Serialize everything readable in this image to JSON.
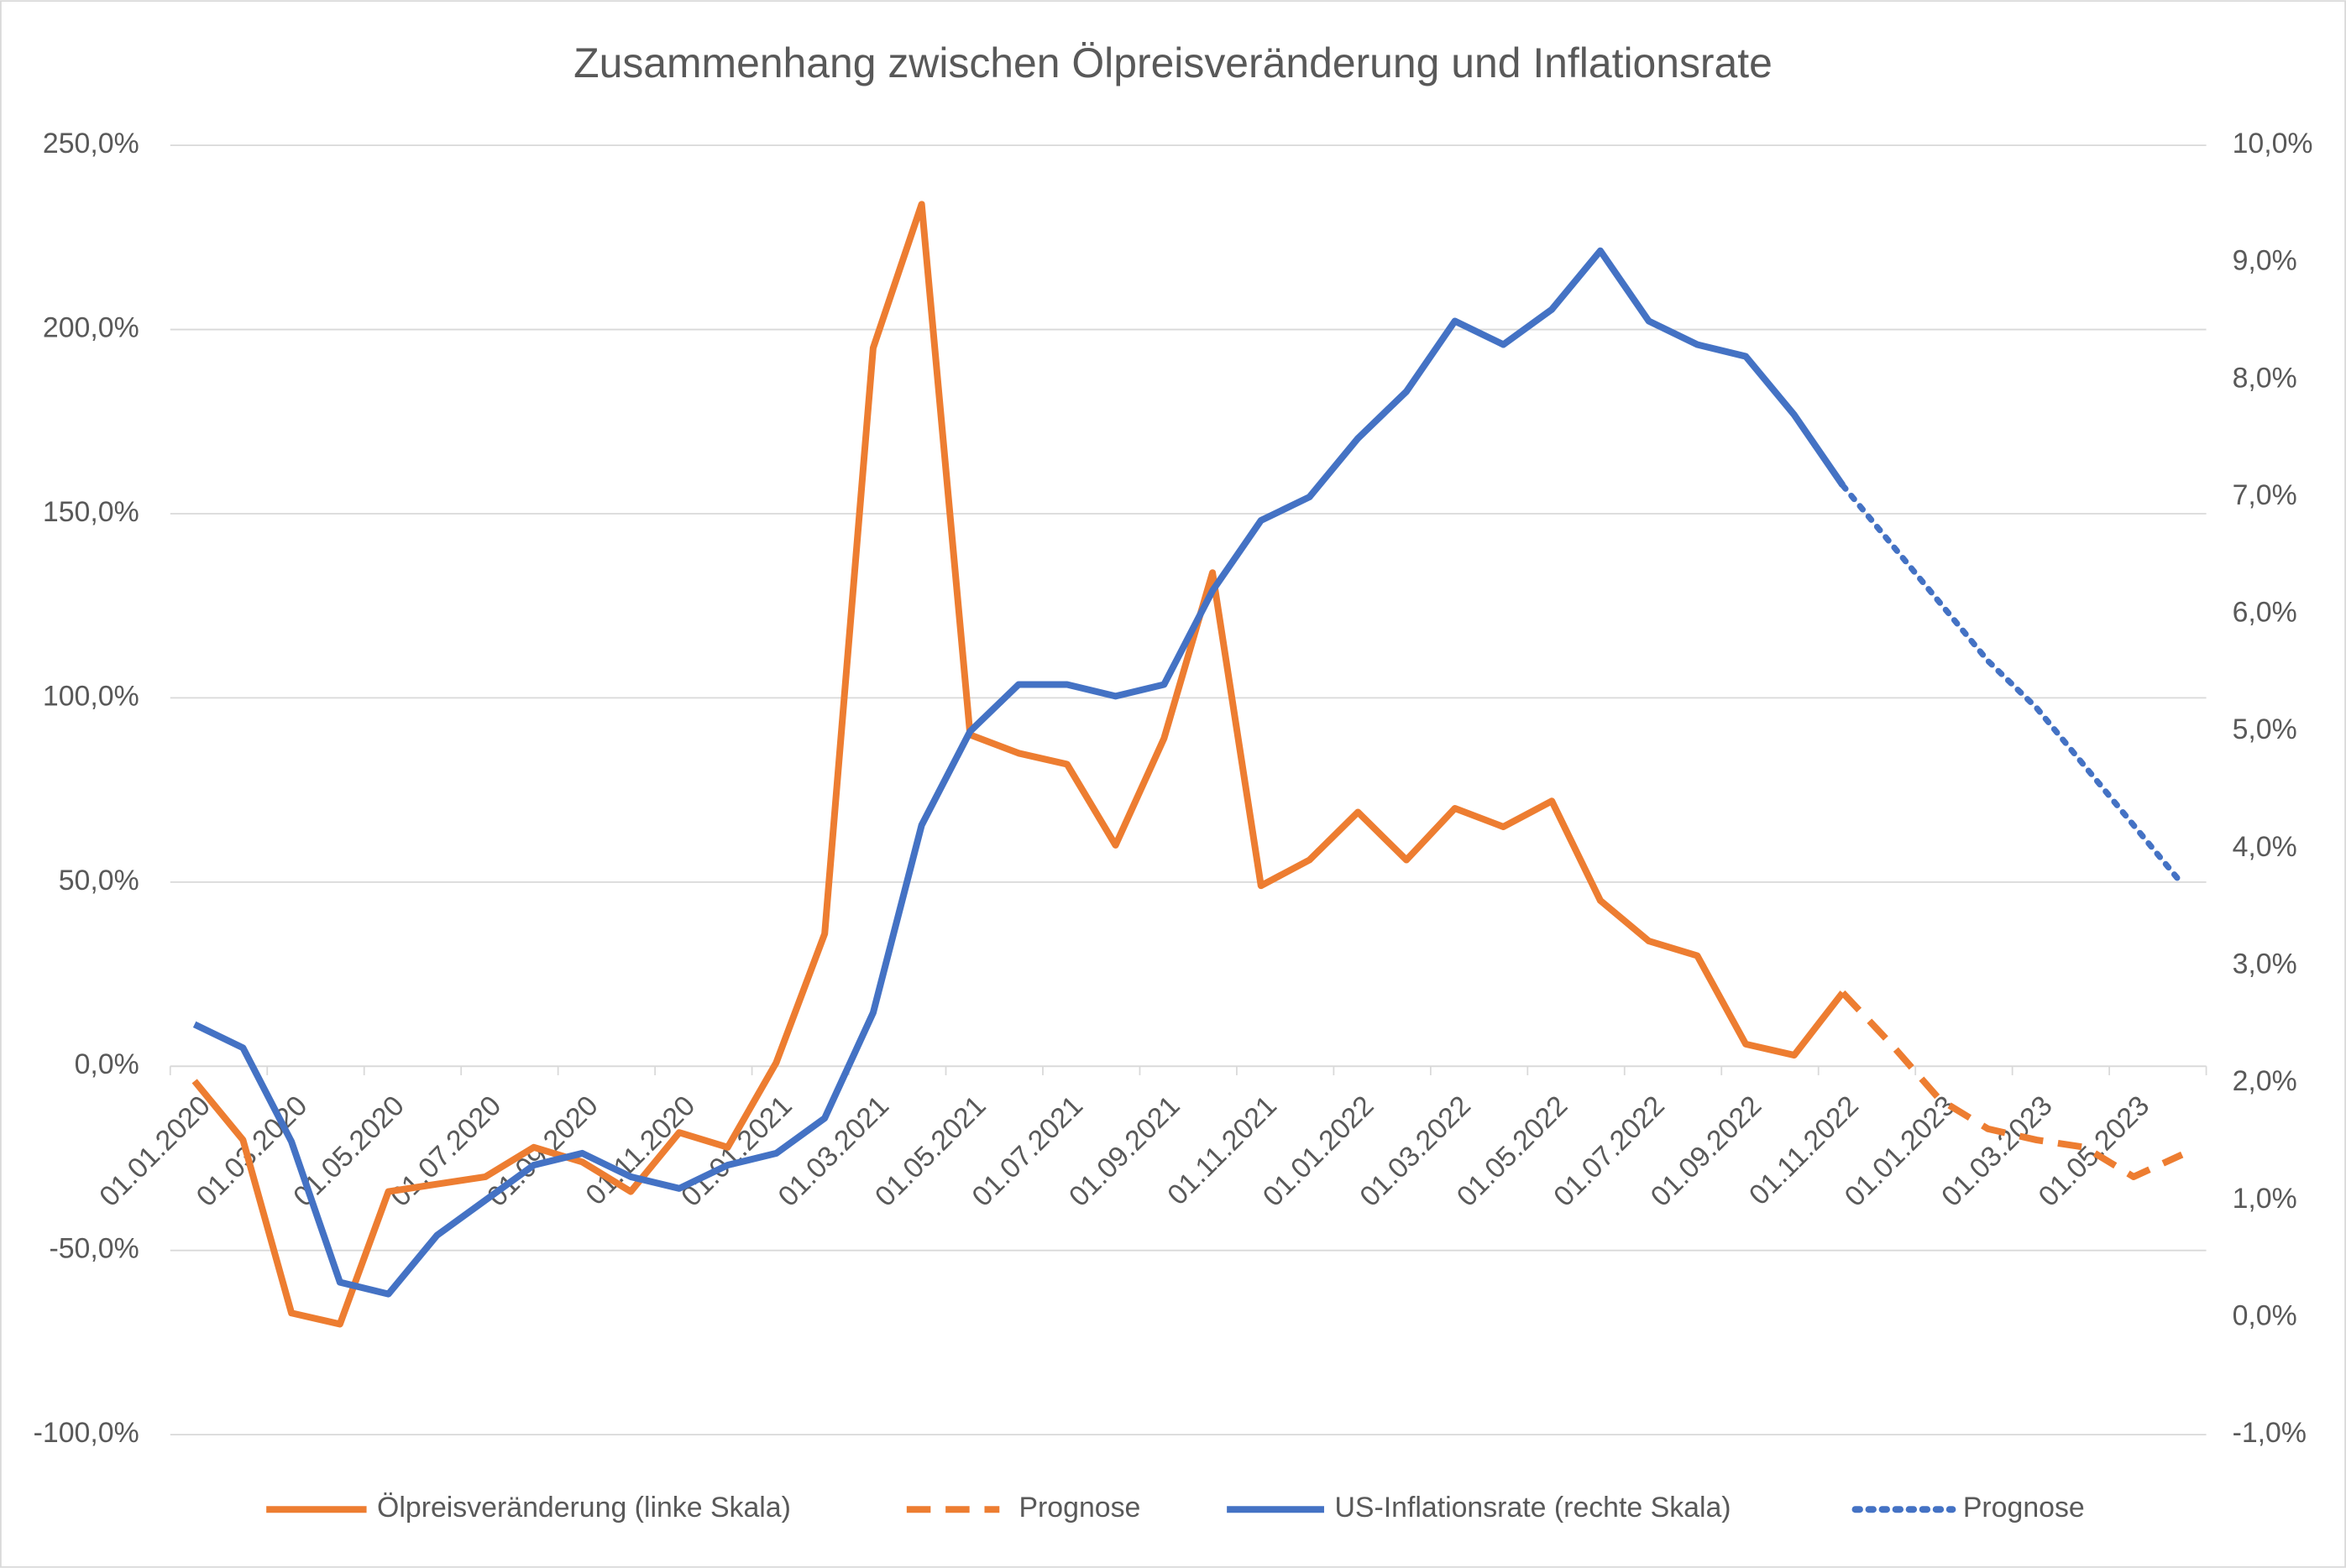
{
  "chart_data": {
    "type": "line",
    "title": "Zusammenhang zwischen Ölpreisveränderung und Inflationsrate",
    "categories": [
      "01.01.2020",
      null,
      "01.03.2020",
      null,
      "01.05.2020",
      null,
      "01.07.2020",
      null,
      "01.09.2020",
      null,
      "01.11.2020",
      null,
      "01.01.2021",
      null,
      "01.03.2021",
      null,
      "01.05.2021",
      null,
      "01.07.2021",
      null,
      "01.09.2021",
      null,
      "01.11.2021",
      null,
      "01.01.2022",
      null,
      "01.03.2022",
      null,
      "01.05.2022",
      null,
      "01.07.2022",
      null,
      "01.09.2022",
      null,
      "01.11.2022",
      null,
      "01.01.2023",
      null,
      "01.03.2023",
      null,
      "01.05.2023",
      null
    ],
    "series": [
      {
        "name": "Ölpreisveränderung (linke Skala)",
        "color": "#ed7d31",
        "dash": "solid",
        "values": [
          -4,
          -20,
          -67,
          -70,
          -34,
          -32,
          -30,
          -22,
          -26,
          -34,
          -18,
          -22,
          1,
          36,
          195,
          234,
          90,
          85,
          82,
          60,
          89,
          134,
          49,
          56,
          69,
          56,
          70,
          65,
          72,
          45,
          34,
          30,
          6,
          3,
          20,
          null,
          null,
          null,
          null,
          null,
          null,
          null
        ]
      },
      {
        "name": "Prognose",
        "color": "#ed7d31",
        "dash": "dashed",
        "values": [
          null,
          null,
          null,
          null,
          null,
          null,
          null,
          null,
          null,
          null,
          null,
          null,
          null,
          null,
          null,
          null,
          null,
          null,
          null,
          null,
          null,
          null,
          null,
          null,
          null,
          null,
          null,
          null,
          null,
          null,
          null,
          null,
          null,
          null,
          20,
          6,
          -9,
          -17,
          -20,
          -22,
          -30,
          -24
        ]
      },
      {
        "name": "US-Inflationsrate (rechte Skala)",
        "color": "#4472c4",
        "dash": "solid",
        "axis": "y2",
        "values": [
          2.5,
          2.3,
          1.5,
          0.3,
          0.2,
          0.7,
          1.0,
          1.3,
          1.4,
          1.2,
          1.1,
          1.3,
          1.4,
          1.7,
          2.6,
          4.2,
          5.0,
          5.4,
          5.4,
          5.3,
          5.4,
          6.2,
          6.8,
          7.0,
          7.5,
          7.9,
          8.5,
          8.3,
          8.6,
          9.1,
          8.5,
          8.3,
          8.2,
          7.7,
          7.1,
          null,
          null,
          null,
          null,
          null,
          null,
          null
        ]
      },
      {
        "name": "Prognose",
        "color": "#4472c4",
        "dash": "dotted",
        "axis": "y2",
        "values": [
          null,
          null,
          null,
          null,
          null,
          null,
          null,
          null,
          null,
          null,
          null,
          null,
          null,
          null,
          null,
          null,
          null,
          null,
          null,
          null,
          null,
          null,
          null,
          null,
          null,
          null,
          null,
          null,
          null,
          null,
          null,
          null,
          null,
          null,
          7.1,
          6.6,
          6.1,
          5.6,
          5.2,
          4.7,
          4.2,
          3.7
        ]
      }
    ],
    "ylim": [
      -100,
      250
    ],
    "yticks": [
      {
        "value": -100,
        "label": "-100,0%"
      },
      {
        "value": -50,
        "label": "-50,0%"
      },
      {
        "value": 0,
        "label": "0,0%"
      },
      {
        "value": 50,
        "label": "50,0%"
      },
      {
        "value": 100,
        "label": "100,0%"
      },
      {
        "value": 150,
        "label": "150,0%"
      },
      {
        "value": 200,
        "label": "200,0%"
      },
      {
        "value": 250,
        "label": "250,0%"
      }
    ],
    "y2lim": [
      -1,
      10
    ],
    "y2ticks": [
      {
        "value": -1,
        "label": "-1,0%"
      },
      {
        "value": 0,
        "label": "0,0%"
      },
      {
        "value": 1,
        "label": "1,0%"
      },
      {
        "value": 2,
        "label": "2,0%"
      },
      {
        "value": 3,
        "label": "3,0%"
      },
      {
        "value": 4,
        "label": "4,0%"
      },
      {
        "value": 5,
        "label": "5,0%"
      },
      {
        "value": 6,
        "label": "6,0%"
      },
      {
        "value": 7,
        "label": "7,0%"
      },
      {
        "value": 8,
        "label": "8,0%"
      },
      {
        "value": 9,
        "label": "9,0%"
      },
      {
        "value": 10,
        "label": "10,0%"
      }
    ],
    "grid": true,
    "legend": "bottom"
  }
}
